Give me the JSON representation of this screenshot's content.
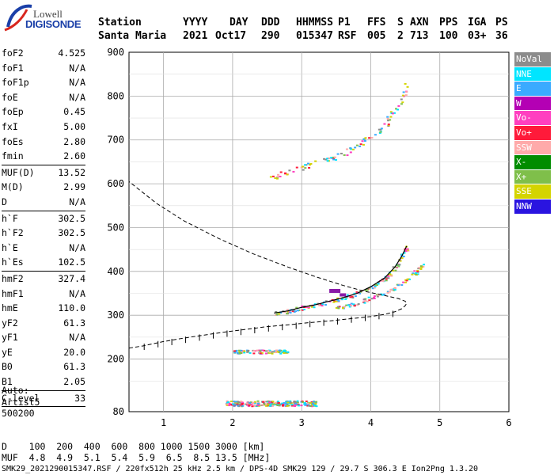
{
  "logo": {
    "line1": "Lowell",
    "line2": "DIGISONDE"
  },
  "header": {
    "labels": [
      "Station",
      "YYYY",
      "DAY",
      "DDD",
      "HHMMSS",
      "P1",
      "FFS",
      "S",
      "AXN",
      "PPS",
      "IGA",
      "PS"
    ],
    "values": [
      "Santa Maria",
      "2021",
      "Oct17",
      "290",
      "015347",
      "RSF",
      "005",
      "2",
      "713",
      "100",
      "03+",
      "36"
    ]
  },
  "params": [
    {
      "key": "foF2",
      "value": "4.525"
    },
    {
      "key": "foF1",
      "value": "N/A"
    },
    {
      "key": "foF1p",
      "value": "N/A"
    },
    {
      "key": "foE",
      "value": "N/A"
    },
    {
      "key": "foEp",
      "value": "0.45"
    },
    {
      "key": "fxI",
      "value": "5.00"
    },
    {
      "key": "foEs",
      "value": "2.80"
    },
    {
      "key": "fmin",
      "value": "2.60"
    },
    {
      "sep": true
    },
    {
      "key": "MUF(D)",
      "value": "13.52"
    },
    {
      "key": "M(D)",
      "value": "2.99"
    },
    {
      "key": "D",
      "value": "N/A"
    },
    {
      "sep": true
    },
    {
      "key": "h`F",
      "value": "302.5"
    },
    {
      "key": "h`F2",
      "value": "302.5"
    },
    {
      "key": "h`E",
      "value": "N/A"
    },
    {
      "key": "h`Es",
      "value": "102.5"
    },
    {
      "sep": true
    },
    {
      "key": "hmF2",
      "value": "327.4"
    },
    {
      "key": "hmF1",
      "value": "N/A"
    },
    {
      "key": "hmE",
      "value": "110.0"
    },
    {
      "key": "yF2",
      "value": "61.3"
    },
    {
      "key": "yF1",
      "value": "N/A"
    },
    {
      "key": "yE",
      "value": "20.0"
    },
    {
      "key": "B0",
      "value": "61.3"
    },
    {
      "key": "B1",
      "value": "2.05"
    },
    {
      "sep": true
    },
    {
      "key": "C-level",
      "value": "33"
    },
    {
      "sep": true
    }
  ],
  "autoscaling": {
    "line1": "Auto:",
    "line2": "Artist5",
    "line3": "500200"
  },
  "legend": [
    {
      "label": "NoVal",
      "color": "#8c8c8c"
    },
    {
      "label": "NNE",
      "color": "#00e5ff"
    },
    {
      "label": "E",
      "color": "#3aaaff"
    },
    {
      "label": "W",
      "color": "#b400b4"
    },
    {
      "label": "Vo-",
      "color": "#ff3fc0"
    },
    {
      "label": "Vo+",
      "color": "#ff1a3a"
    },
    {
      "label": "SSW",
      "color": "#ffaaaa"
    },
    {
      "label": "X-",
      "color": "#008c00"
    },
    {
      "label": "X+",
      "color": "#7fbf4a"
    },
    {
      "label": "SSE",
      "color": "#d4d400"
    },
    {
      "label": "NNW",
      "color": "#2a14e0"
    }
  ],
  "footer": {
    "d_label": "D",
    "d_values": "100  200  400  600  800 1000 1500 3000 [km]",
    "muf_label": "MUF",
    "muf_values": "4.8  4.9  5.1  5.4  5.9  6.5  8.5 13.5 [MHz]",
    "info": "SMK29_2021290015347.RSF / 220fx512h 25 kHz 2.5 km / DPS-4D SMK29 129 / 29.7 S 306.3 E Ion2Png 1.3.20"
  },
  "chart_data": {
    "type": "scatter",
    "xlim": [
      0.5,
      6
    ],
    "ylim": [
      80,
      900
    ],
    "xticks": [
      1,
      2,
      3,
      4,
      5,
      6
    ],
    "yticks": [
      80,
      200,
      300,
      400,
      500,
      600,
      700,
      800,
      900
    ],
    "grid": true,
    "echo_colors": [
      "#00e5ff",
      "#3aaaff",
      "#ff3fc0",
      "#ff1a3a",
      "#ffaaaa",
      "#8c8c8c",
      "#7fbf4a",
      "#d4d400"
    ],
    "trace_F2": {
      "x": [
        2.6,
        2.8,
        3.0,
        3.2,
        3.4,
        3.6,
        3.8,
        4.0,
        4.2,
        4.35,
        4.45,
        4.52
      ],
      "y": [
        305,
        310,
        318,
        324,
        332,
        340,
        350,
        365,
        385,
        410,
        435,
        458
      ]
    },
    "trace_X": {
      "x": [
        3.5,
        3.7,
        3.9,
        4.1,
        4.3,
        4.5,
        4.65,
        4.75
      ],
      "y": [
        318,
        325,
        334,
        345,
        360,
        380,
        400,
        420
      ]
    },
    "echoes_F2_2hop": {
      "x": [
        2.5,
        2.7,
        3.0,
        3.2,
        3.4,
        3.6,
        3.8,
        4.0,
        4.2,
        4.3,
        4.45,
        4.5
      ],
      "y": [
        615,
        622,
        640,
        650,
        660,
        668,
        690,
        710,
        735,
        760,
        790,
        825
      ]
    },
    "echoes_E": {
      "x_range": [
        2.0,
        2.8
      ],
      "y": 218
    },
    "echoes_Es": {
      "x_range": [
        1.9,
        3.2
      ],
      "y": 100
    },
    "profile": {
      "x": [
        0.5,
        0.7,
        1.0,
        1.3,
        1.6,
        1.9,
        2.2,
        2.5,
        2.8,
        3.1,
        3.4,
        3.7,
        4.0,
        4.2,
        4.35,
        4.45,
        4.5,
        4.52,
        4.5,
        4.4,
        4.2,
        3.9,
        3.6,
        3.2,
        2.8,
        2.3,
        1.8,
        1.3,
        0.9,
        0.5
      ],
      "y": [
        225,
        230,
        240,
        248,
        255,
        262,
        268,
        274,
        278,
        283,
        287,
        292,
        297,
        302,
        308,
        315,
        322,
        327,
        332,
        338,
        345,
        355,
        368,
        388,
        410,
        440,
        475,
        515,
        555,
        605
      ]
    },
    "profile_underlying_x": [
      0.72,
      0.92,
      1.12,
      1.32,
      1.52,
      1.72,
      1.92,
      2.12,
      2.32,
      2.52,
      2.72,
      2.92,
      3.12,
      3.32,
      3.52,
      3.72,
      3.92,
      4.12,
      4.32
    ],
    "profile_underlying_y": [
      228,
      234,
      239,
      244,
      249,
      254,
      258,
      262,
      266,
      270,
      273,
      276,
      280,
      283,
      286,
      290,
      294,
      298,
      303
    ]
  }
}
